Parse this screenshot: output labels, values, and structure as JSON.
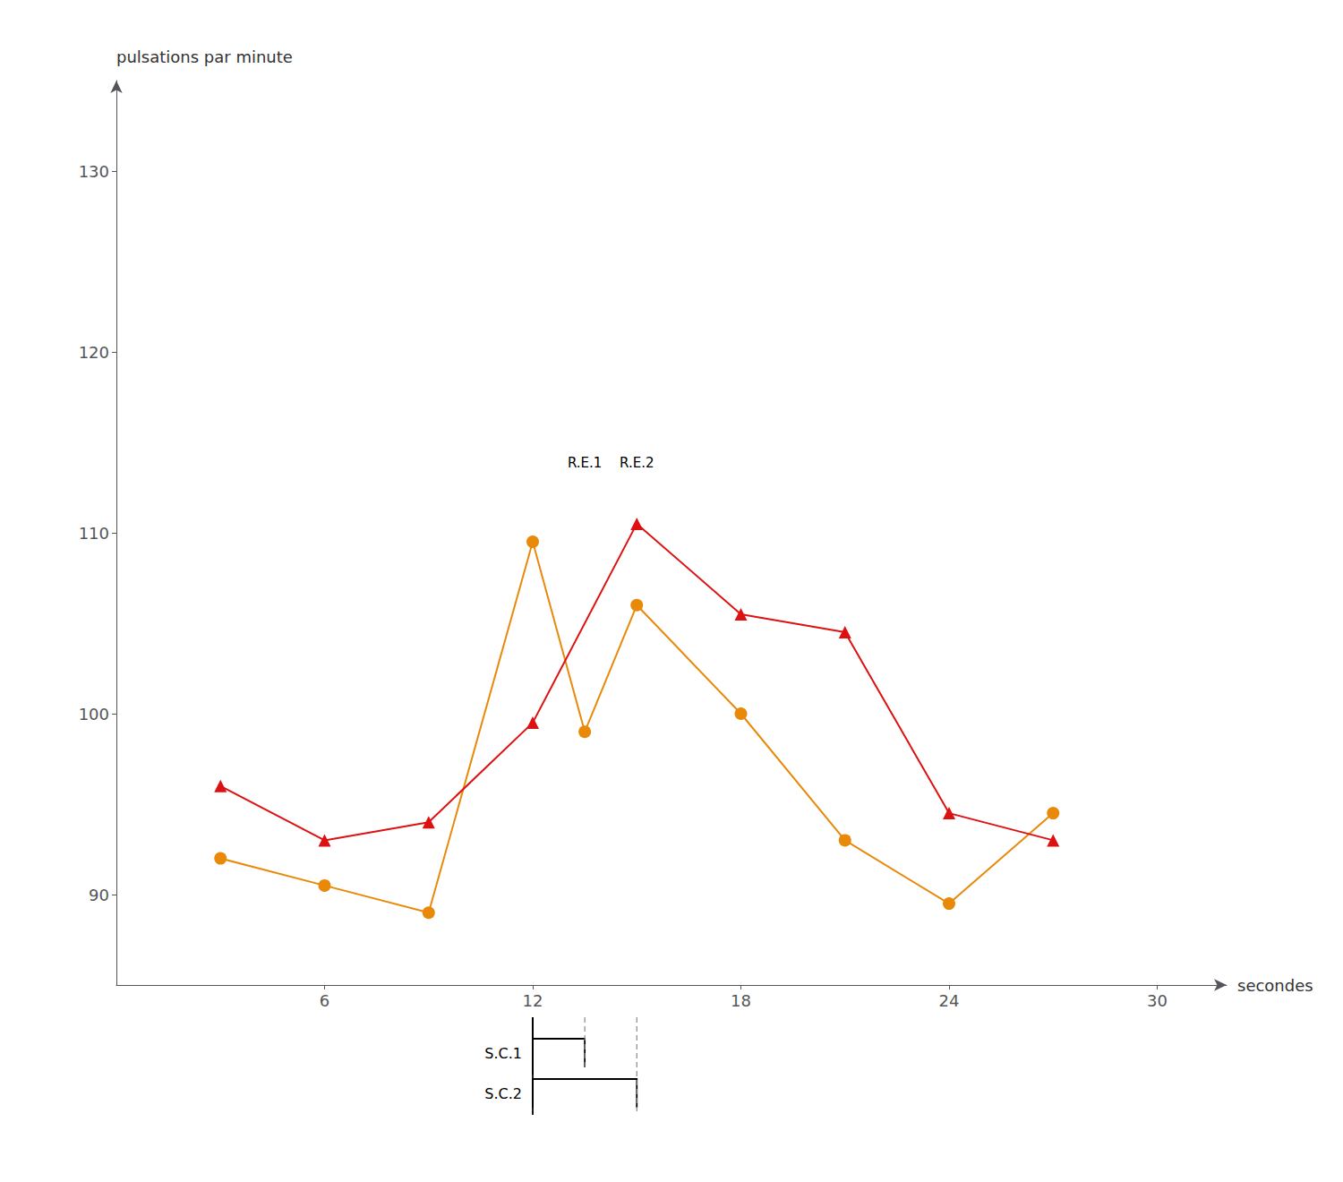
{
  "chart_data": {
    "type": "line",
    "xlabel": "secondes",
    "ylabel": "pulsations par minute",
    "xlim": [
      0,
      32
    ],
    "xticks": [
      6,
      12,
      18,
      24,
      30
    ],
    "ylim": [
      85,
      135
    ],
    "yticks": [
      90,
      100,
      110,
      120,
      130
    ],
    "grid": false,
    "series": [
      {
        "x": [
          3,
          6,
          9,
          12,
          13.5,
          15,
          18,
          21,
          24,
          27
        ],
        "values": [
          92,
          90.5,
          89,
          109.5,
          99,
          106,
          100,
          93,
          89.5,
          94.5
        ],
        "color": "#e8890a",
        "marker": "circle"
      },
      {
        "x": [
          3,
          6,
          9,
          12,
          15,
          18,
          21,
          24,
          27
        ],
        "values": [
          96,
          93,
          94,
          99.5,
          110.5,
          105.5,
          104.5,
          94.5,
          93
        ],
        "color": "#dd1111",
        "marker": "triangle"
      }
    ],
    "annotations": [
      {
        "text": "R.E.1",
        "x": 13.5,
        "y": 113.5
      },
      {
        "text": "R.E.2",
        "x": 15,
        "y": 113.5
      },
      {
        "text": "S.C.1",
        "x_range": [
          12,
          13.5
        ]
      },
      {
        "text": "S.C.2",
        "x_range": [
          12,
          15
        ]
      }
    ]
  }
}
